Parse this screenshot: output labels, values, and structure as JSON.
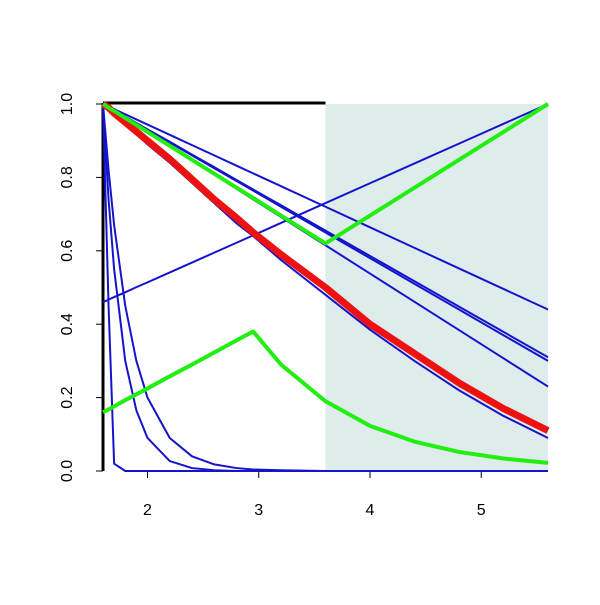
{
  "chart_data": {
    "type": "line",
    "x": [
      1.6,
      1.65,
      1.7,
      1.8,
      1.9,
      2.0,
      2.2,
      2.4,
      2.6,
      2.8,
      2.95,
      3.2,
      3.6,
      4.0,
      4.4,
      4.8,
      5.2,
      5.6
    ],
    "xlim": [
      1.6,
      5.6
    ],
    "ylim": [
      0,
      1
    ],
    "xticks": [
      2,
      3,
      4,
      5
    ],
    "yticks": [
      {
        "value": 0,
        "label": "0.0"
      },
      {
        "value": 0.2,
        "label": "0.2"
      },
      {
        "value": 0.4,
        "label": "0.4"
      },
      {
        "value": 0.6,
        "label": "0.6"
      },
      {
        "value": 0.8,
        "label": "0.8"
      },
      {
        "value": 1,
        "label": "1.0"
      }
    ],
    "shaded_region": {
      "xlim": [
        3.6,
        5.6
      ],
      "color": "#deeceb"
    },
    "series": [
      {
        "color": "#1414cc",
        "line_width": 2,
        "values": [
          1,
          0.993,
          0.986,
          0.972,
          0.958,
          0.944,
          0.916,
          0.888,
          0.86,
          0.832,
          0.811,
          0.776,
          0.72,
          0.664,
          0.608,
          0.552,
          0.496,
          0.44
        ]
      },
      {
        "color": "#1414cc",
        "line_width": 2,
        "values": [
          1,
          0.991,
          0.983,
          0.966,
          0.948,
          0.931,
          0.897,
          0.862,
          0.828,
          0.793,
          0.767,
          0.724,
          0.655,
          0.586,
          0.517,
          0.448,
          0.379,
          0.31
        ]
      },
      {
        "color": "#1414cc",
        "line_width": 2,
        "values": [
          1,
          0.991,
          0.983,
          0.965,
          0.948,
          0.93,
          0.895,
          0.86,
          0.825,
          0.79,
          0.764,
          0.72,
          0.65,
          0.58,
          0.51,
          0.44,
          0.37,
          0.3
        ]
      },
      {
        "color": "#1414cc",
        "line_width": 2,
        "values": [
          1,
          0.99,
          0.981,
          0.962,
          0.942,
          0.923,
          0.885,
          0.846,
          0.808,
          0.769,
          0.74,
          0.692,
          0.615,
          0.538,
          0.461,
          0.384,
          0.307,
          0.23
        ]
      },
      {
        "color": "#1414cc",
        "line_width": 2,
        "values": [
          1,
          0.988,
          0.973,
          0.945,
          0.918,
          0.89,
          0.84,
          0.785,
          0.73,
          0.675,
          0.64,
          0.575,
          0.48,
          0.385,
          0.3,
          0.22,
          0.15,
          0.09
        ]
      },
      {
        "color": "#1414cc",
        "line_width": 2,
        "values": [
          0.46,
          0.467,
          0.474,
          0.487,
          0.501,
          0.514,
          0.541,
          0.568,
          0.595,
          0.622,
          0.642,
          0.676,
          0.73,
          0.784,
          0.838,
          0.892,
          0.946,
          1
        ]
      },
      {
        "color": "#1414cc",
        "line_width": 2,
        "values": [
          1,
          0.45,
          0.02,
          0,
          0,
          0,
          0,
          0,
          0,
          0,
          0,
          0,
          0,
          0,
          0,
          0,
          0,
          0
        ]
      },
      {
        "color": "#1414cc",
        "line_width": 2,
        "values": [
          1,
          0.74,
          0.55,
          0.3,
          0.165,
          0.09,
          0.027,
          0.008,
          0.002,
          0,
          0,
          0,
          0,
          0,
          0,
          0,
          0,
          0
        ]
      },
      {
        "color": "#1414cc",
        "line_width": 2,
        "values": [
          1,
          0.82,
          0.67,
          0.45,
          0.3,
          0.2,
          0.09,
          0.04,
          0.018,
          0.008,
          0.004,
          0.002,
          0,
          0,
          0,
          0,
          0,
          0
        ]
      },
      {
        "color": "#ee1111",
        "line_width": 7,
        "values": [
          1,
          0.99,
          0.975,
          0.95,
          0.925,
          0.9,
          0.85,
          0.795,
          0.74,
          0.69,
          0.65,
          0.59,
          0.5,
          0.4,
          0.32,
          0.24,
          0.17,
          0.11
        ]
      },
      {
        "color": "#22ee11",
        "line_width": 4,
        "values": [
          1,
          0.99,
          0.981,
          0.962,
          0.943,
          0.924,
          0.886,
          0.848,
          0.81,
          0.772,
          0.744,
          0.696,
          0.62,
          0.696,
          0.772,
          0.848,
          0.924,
          1
        ]
      },
      {
        "color": "#22ee11",
        "line_width": 4,
        "values": [
          0.16,
          0.168,
          0.176,
          0.193,
          0.209,
          0.225,
          0.258,
          0.29,
          0.323,
          0.356,
          0.38,
          0.29,
          0.19,
          0.123,
          0.08,
          0.052,
          0.034,
          0.022
        ]
      }
    ]
  }
}
